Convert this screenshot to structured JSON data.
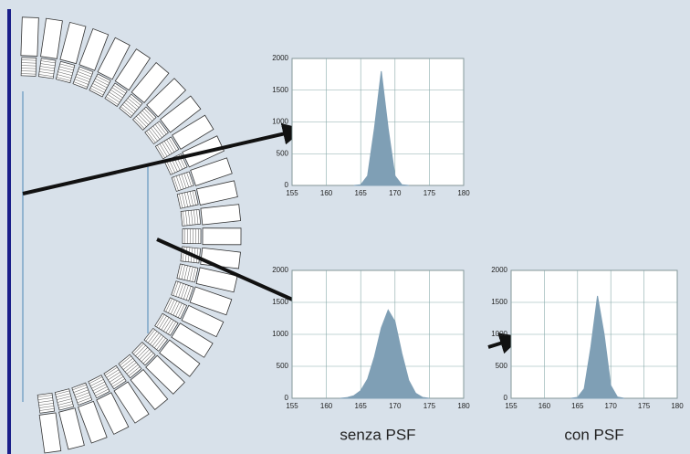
{
  "chart_data": [
    {
      "type": "area",
      "x": [
        164,
        165,
        166,
        167,
        168,
        169,
        170,
        171,
        172
      ],
      "values": [
        0,
        10,
        150,
        900,
        1800,
        900,
        150,
        10,
        0
      ],
      "color": "#7f9fb5",
      "xlim": [
        155,
        180
      ],
      "ylim": [
        0,
        2000
      ],
      "xticks": [
        155,
        160,
        165,
        170,
        175,
        180
      ],
      "yticks": [
        0,
        500,
        1000,
        1500,
        2000
      ],
      "grid": true
    },
    {
      "type": "area",
      "caption": "senza PSF",
      "x": [
        162,
        163,
        164,
        165,
        166,
        167,
        168,
        169,
        170,
        171,
        172,
        173,
        174,
        175
      ],
      "values": [
        0,
        10,
        40,
        120,
        300,
        650,
        1100,
        1380,
        1200,
        700,
        280,
        80,
        15,
        0
      ],
      "color": "#7f9fb5",
      "xlim": [
        155,
        180
      ],
      "ylim": [
        0,
        2000
      ],
      "xticks": [
        155,
        160,
        165,
        170,
        175,
        180
      ],
      "yticks": [
        0,
        500,
        1000,
        1500,
        2000
      ],
      "grid": true
    },
    {
      "type": "area",
      "caption": "con PSF",
      "x": [
        164,
        165,
        166,
        167,
        168,
        169,
        170,
        171,
        172
      ],
      "values": [
        0,
        15,
        150,
        800,
        1600,
        1000,
        200,
        20,
        0
      ],
      "color": "#7f9fb5",
      "xlim": [
        155,
        180
      ],
      "ylim": [
        0,
        2000
      ],
      "xticks": [
        155,
        160,
        165,
        170,
        175,
        180
      ],
      "yticks": [
        0,
        500,
        1000,
        1500,
        2000
      ],
      "grid": true
    }
  ]
}
